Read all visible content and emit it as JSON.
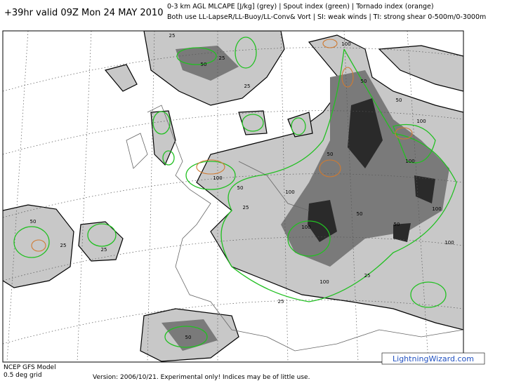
{
  "header": {
    "valid_time": "+39hr valid 09Z Mon 24 MAY 2010",
    "legend_line_1": "0-3 km AGL MLCAPE [J/kg] (grey) | Spout index (green) | Tornado index (orange)",
    "legend_line_2": "Both use LL-LapseR/LL-Buoy/LL-Conv& Vort | SI: weak winds | TI: strong shear 0-500m/0-3000m"
  },
  "map": {
    "contour_labels": [
      "25",
      "50",
      "25",
      "25",
      "100",
      "50",
      "50",
      "100",
      "100",
      "50",
      "100",
      "50",
      "100",
      "25",
      "50",
      "25",
      "25",
      "100",
      "50",
      "50",
      "100",
      "25",
      "25",
      "100",
      "50",
      "100"
    ]
  },
  "footer": {
    "model": "NCEP GFS Model",
    "grid": "0.5 deg grid",
    "version": "Version: 2006/10/21. Experimental only! Indices may be of little use.",
    "credit": "LightningWizard.com"
  }
}
